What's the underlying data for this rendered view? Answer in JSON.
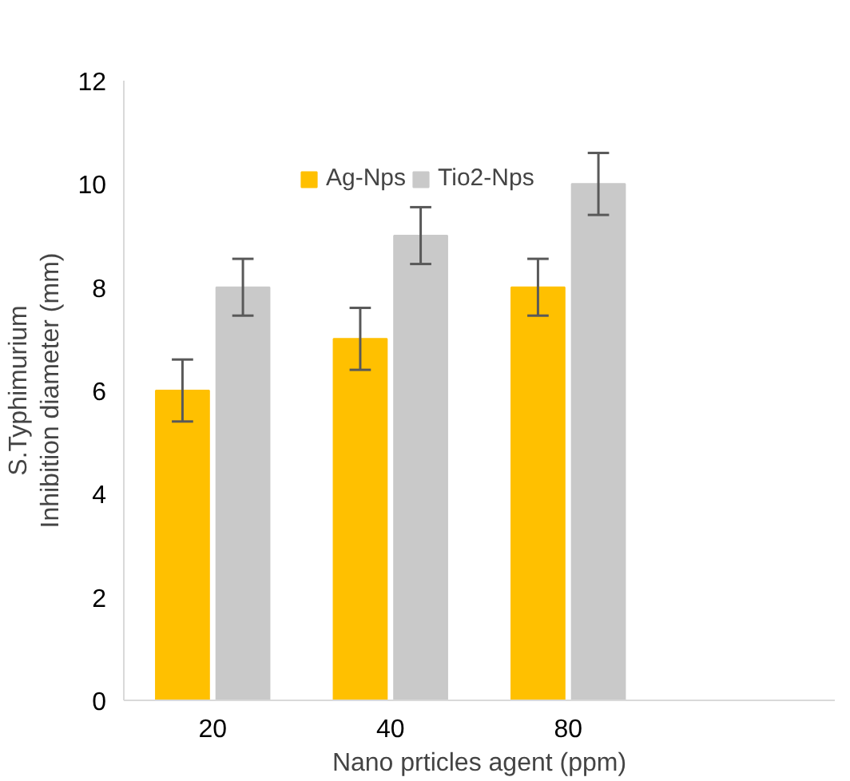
{
  "chart_data": {
    "type": "bar",
    "xlabel": "Nano prticles agent (ppm)",
    "ylabel": "S.Typhimurium\nInhibition diameter (mm)",
    "categories": [
      "20",
      "40",
      "80",
      null
    ],
    "series": [
      {
        "name": "Ag-Nps",
        "color": "#ffc000",
        "values": [
          6,
          7,
          8,
          null
        ],
        "errors": [
          0.6,
          0.6,
          0.55,
          null
        ]
      },
      {
        "name": "Tio2-Nps",
        "color": "#c9c9c9",
        "values": [
          8,
          9,
          10,
          null
        ],
        "errors": [
          0.55,
          0.55,
          0.6,
          null
        ]
      }
    ],
    "ylim": [
      0,
      12
    ],
    "yticks": [
      0,
      2,
      4,
      6,
      8,
      10,
      12
    ],
    "grid": false,
    "legend": "top"
  }
}
